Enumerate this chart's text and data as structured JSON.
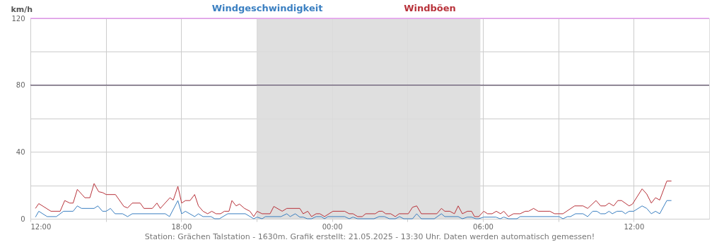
{
  "chart_data": {
    "type": "line",
    "ylabel": "km/h",
    "annotations": [
      "Station: Grächen Talstation - 1630m. Grafik erstellt: 21.05.2025 - 13:30 Uhr. Daten werden automatisch gemessen!"
    ],
    "xlim": [
      "2025-05-20T12:00",
      "2025-05-21T15:00"
    ],
    "ylim": [
      0,
      120
    ],
    "xticks": [
      {
        "value": "2025-05-20T12:00",
        "label": "12:00"
      },
      {
        "value": "2025-05-20T15:00",
        "label": null
      },
      {
        "value": "2025-05-20T18:00",
        "label": "18:00"
      },
      {
        "value": "2025-05-20T21:00",
        "label": null
      },
      {
        "value": "2025-05-21T00:00",
        "label": "00:00"
      },
      {
        "value": "2025-05-21T03:00",
        "label": null
      },
      {
        "value": "2025-05-21T06:00",
        "label": "06:00"
      },
      {
        "value": "2025-05-21T09:00",
        "label": null
      },
      {
        "value": "2025-05-21T12:00",
        "label": "12:00"
      }
    ],
    "yticks": [
      0,
      {
        "value": 20,
        "label": null
      },
      40,
      {
        "value": 60,
        "label": null
      },
      80,
      {
        "value": 100,
        "label": null
      },
      120
    ],
    "grid": true,
    "legend": "top",
    "marker": "none",
    "line_style": "solid",
    "bands": [
      {
        "axis": "x",
        "from": "2025-05-20T21:00",
        "to": "2025-05-21T05:54",
        "color": "#dcdcdc"
      }
    ],
    "ref_lines": [
      {
        "axis": "y",
        "value": 80,
        "color": "#4b3a5a"
      },
      {
        "axis": "y",
        "value": 120,
        "color": "#e070f0"
      }
    ],
    "series": [
      {
        "name": "Windgeschwindigkeit",
        "color": "#3a7fc1",
        "x": [
          "2025-05-20T12:12",
          "2025-05-20T12:20",
          "2025-05-20T12:40",
          "2025-05-20T13:02",
          "2025-05-20T13:19",
          "2025-05-20T13:42",
          "2025-05-20T13:52",
          "2025-05-20T14:02",
          "2025-05-20T14:32",
          "2025-05-20T14:41",
          "2025-05-20T14:52",
          "2025-05-20T15:01",
          "2025-05-20T15:11",
          "2025-05-20T15:22",
          "2025-05-20T15:40",
          "2025-05-20T15:52",
          "2025-05-20T16:03",
          "2025-05-20T17:22",
          "2025-05-20T17:32",
          "2025-05-20T17:52",
          "2025-05-20T18:01",
          "2025-05-20T18:10",
          "2025-05-20T18:32",
          "2025-05-20T18:41",
          "2025-05-20T18:52",
          "2025-05-20T19:11",
          "2025-05-20T19:20",
          "2025-05-20T19:31",
          "2025-05-20T19:51",
          "2025-05-20T20:33",
          "2025-05-20T20:53",
          "2025-05-20T21:01",
          "2025-05-20T21:13",
          "2025-05-20T21:21",
          "2025-05-20T21:58",
          "2025-05-20T22:12",
          "2025-05-20T22:20",
          "2025-05-20T22:32",
          "2025-05-20T22:43",
          "2025-05-20T22:51",
          "2025-05-20T23:01",
          "2025-05-20T23:11",
          "2025-05-20T23:22",
          "2025-05-20T23:34",
          "2025-05-20T23:42",
          "2025-05-20T23:50",
          "2025-05-21T00:30",
          "2025-05-21T00:41",
          "2025-05-21T00:50",
          "2025-05-21T01:01",
          "2025-05-21T01:40",
          "2025-05-21T01:52",
          "2025-05-21T02:05",
          "2025-05-21T02:17",
          "2025-05-21T02:31",
          "2025-05-21T02:41",
          "2025-05-21T02:51",
          "2025-05-21T03:12",
          "2025-05-21T03:22",
          "2025-05-21T03:33",
          "2025-05-21T04:04",
          "2025-05-21T04:21",
          "2025-05-21T04:29",
          "2025-05-21T05:01",
          "2025-05-21T05:11",
          "2025-05-21T05:23",
          "2025-05-21T05:33",
          "2025-05-21T05:43",
          "2025-05-21T05:50",
          "2025-05-21T06:02",
          "2025-05-21T06:31",
          "2025-05-21T06:41",
          "2025-05-21T06:50",
          "2025-05-21T07:01",
          "2025-05-21T07:21",
          "2025-05-21T07:29",
          "2025-05-21T09:02",
          "2025-05-21T09:11",
          "2025-05-21T09:22",
          "2025-05-21T09:29",
          "2025-05-21T09:41",
          "2025-05-21T09:59",
          "2025-05-21T10:10",
          "2025-05-21T10:22",
          "2025-05-21T10:32",
          "2025-05-21T10:41",
          "2025-05-21T10:52",
          "2025-05-21T11:01",
          "2025-05-21T11:09",
          "2025-05-21T11:20",
          "2025-05-21T11:32",
          "2025-05-21T11:40",
          "2025-05-21T11:49",
          "2025-05-21T12:00",
          "2025-05-21T12:20",
          "2025-05-21T12:31",
          "2025-05-21T12:42",
          "2025-05-21T12:52",
          "2025-05-21T13:02",
          "2025-05-21T13:19",
          "2025-05-21T13:30"
        ],
        "values": [
          1.0,
          4.5,
          1.3,
          1.3,
          4.5,
          4.5,
          7.7,
          6.2,
          6.2,
          7.7,
          4.5,
          4.5,
          6.2,
          3.0,
          3.0,
          1.3,
          3.0,
          3.0,
          1.3,
          10.9,
          3.0,
          4.5,
          1.3,
          3.0,
          1.3,
          1.3,
          0,
          0,
          3.0,
          3.0,
          0,
          1.0,
          0,
          1.3,
          1.3,
          3.0,
          1.3,
          3.0,
          1.0,
          1.0,
          0,
          0,
          1.3,
          1.3,
          0,
          1.3,
          1.3,
          0,
          1.0,
          0,
          0,
          1.3,
          1.3,
          0,
          0,
          1.3,
          0,
          0,
          3.0,
          0,
          0,
          3.0,
          1.3,
          1.3,
          0,
          1.0,
          1.0,
          0,
          0,
          1.0,
          1.0,
          0,
          1.0,
          0,
          0,
          1.3,
          1.3,
          0,
          1.3,
          1.3,
          3.0,
          3.0,
          1.3,
          4.5,
          4.5,
          3.0,
          3.0,
          4.5,
          3.0,
          4.5,
          4.5,
          3.0,
          4.5,
          4.5,
          7.7,
          6.2,
          3.0,
          4.5,
          3.0,
          10.9,
          10.9
        ]
      },
      {
        "name": "Windböen",
        "color": "#b8323a",
        "x": [
          "2025-05-20T12:12",
          "2025-05-20T12:20",
          "2025-05-20T12:49",
          "2025-05-20T13:11",
          "2025-05-20T13:22",
          "2025-05-20T13:34",
          "2025-05-20T13:42",
          "2025-05-20T13:52",
          "2025-05-20T14:05",
          "2025-05-20T14:10",
          "2025-05-20T14:22",
          "2025-05-20T14:32",
          "2025-05-20T14:43",
          "2025-05-20T14:52",
          "2025-05-20T15:01",
          "2025-05-20T15:23",
          "2025-05-20T15:43",
          "2025-05-20T15:52",
          "2025-05-20T16:03",
          "2025-05-20T16:22",
          "2025-05-20T16:31",
          "2025-05-20T16:51",
          "2025-05-20T17:02",
          "2025-05-20T17:10",
          "2025-05-20T17:33",
          "2025-05-20T17:41",
          "2025-05-20T17:52",
          "2025-05-20T18:01",
          "2025-05-20T18:10",
          "2025-05-20T18:21",
          "2025-05-20T18:32",
          "2025-05-20T18:41",
          "2025-05-20T18:52",
          "2025-05-20T19:03",
          "2025-05-20T19:13",
          "2025-05-20T19:23",
          "2025-05-20T19:34",
          "2025-05-20T19:43",
          "2025-05-20T19:54",
          "2025-05-20T20:01",
          "2025-05-20T20:11",
          "2025-05-20T20:19",
          "2025-05-20T20:31",
          "2025-05-20T20:44",
          "2025-05-20T20:53",
          "2025-05-20T21:01",
          "2025-05-20T21:13",
          "2025-05-20T21:32",
          "2025-05-20T21:41",
          "2025-05-20T22:01",
          "2025-05-20T22:12",
          "2025-05-20T22:43",
          "2025-05-20T22:51",
          "2025-05-20T23:02",
          "2025-05-20T23:11",
          "2025-05-20T23:22",
          "2025-05-20T23:31",
          "2025-05-20T23:42",
          "2025-05-21T00:02",
          "2025-05-21T00:30",
          "2025-05-21T00:41",
          "2025-05-21T00:50",
          "2025-05-21T01:01",
          "2025-05-21T01:12",
          "2025-05-21T01:20",
          "2025-05-21T01:43",
          "2025-05-21T01:52",
          "2025-05-21T02:00",
          "2025-05-21T02:08",
          "2025-05-21T02:20",
          "2025-05-21T02:31",
          "2025-05-21T02:40",
          "2025-05-21T03:02",
          "2025-05-21T03:12",
          "2025-05-21T03:22",
          "2025-05-21T03:33",
          "2025-05-21T04:10",
          "2025-05-21T04:21",
          "2025-05-21T04:29",
          "2025-05-21T04:41",
          "2025-05-21T04:52",
          "2025-05-21T05:01",
          "2025-05-21T05:11",
          "2025-05-21T05:23",
          "2025-05-21T05:33",
          "2025-05-21T05:40",
          "2025-05-21T05:50",
          "2025-05-21T06:02",
          "2025-05-21T06:11",
          "2025-05-21T06:22",
          "2025-05-21T06:32",
          "2025-05-21T06:42",
          "2025-05-21T06:50",
          "2025-05-21T07:01",
          "2025-05-21T07:13",
          "2025-05-21T07:29",
          "2025-05-21T07:41",
          "2025-05-21T07:49",
          "2025-05-21T08:01",
          "2025-05-21T08:12",
          "2025-05-21T08:40",
          "2025-05-21T08:51",
          "2025-05-21T09:11",
          "2025-05-21T09:39",
          "2025-05-21T09:59",
          "2025-05-21T10:10",
          "2025-05-21T10:30",
          "2025-05-21T10:41",
          "2025-05-21T10:52",
          "2025-05-21T11:01",
          "2025-05-21T11:12",
          "2025-05-21T11:22",
          "2025-05-21T11:31",
          "2025-05-21T11:49",
          "2025-05-21T11:57",
          "2025-05-21T12:20",
          "2025-05-21T12:31",
          "2025-05-21T12:42",
          "2025-05-21T12:52",
          "2025-05-21T13:02",
          "2025-05-21T13:19",
          "2025-05-21T13:30"
        ],
        "values": [
          6.2,
          9.1,
          4.5,
          4.5,
          10.9,
          9.4,
          9.4,
          17.6,
          14.0,
          12.6,
          12.6,
          21.1,
          16.2,
          15.7,
          14.5,
          14.5,
          7.4,
          6.5,
          9.4,
          9.4,
          6.2,
          6.2,
          9.4,
          6.2,
          12.6,
          11.2,
          19.4,
          9.4,
          10.9,
          10.9,
          14.5,
          7.7,
          4.5,
          3.0,
          4.5,
          3.0,
          3.0,
          4.5,
          4.5,
          10.9,
          7.7,
          8.8,
          6.2,
          4.5,
          1.3,
          4.5,
          3.0,
          3.0,
          7.4,
          4.5,
          6.2,
          6.2,
          3.0,
          4.5,
          1.3,
          3.0,
          3.0,
          1.3,
          4.5,
          4.5,
          3.0,
          3.0,
          1.3,
          1.3,
          3.0,
          3.0,
          4.5,
          4.5,
          3.0,
          3.0,
          1.3,
          3.0,
          3.0,
          6.9,
          7.7,
          3.0,
          3.0,
          6.2,
          4.5,
          4.5,
          3.0,
          7.7,
          3.0,
          4.5,
          4.5,
          1.3,
          1.3,
          4.5,
          3.0,
          3.0,
          4.5,
          3.0,
          4.5,
          1.3,
          3.0,
          3.0,
          4.5,
          4.5,
          6.2,
          4.5,
          4.5,
          3.0,
          3.0,
          7.7,
          7.7,
          6.2,
          10.9,
          7.7,
          7.7,
          9.4,
          7.7,
          10.9,
          10.9,
          7.7,
          8.8,
          17.9,
          14.8,
          9.4,
          12.6,
          11.2,
          22.6,
          22.6
        ]
      }
    ]
  }
}
